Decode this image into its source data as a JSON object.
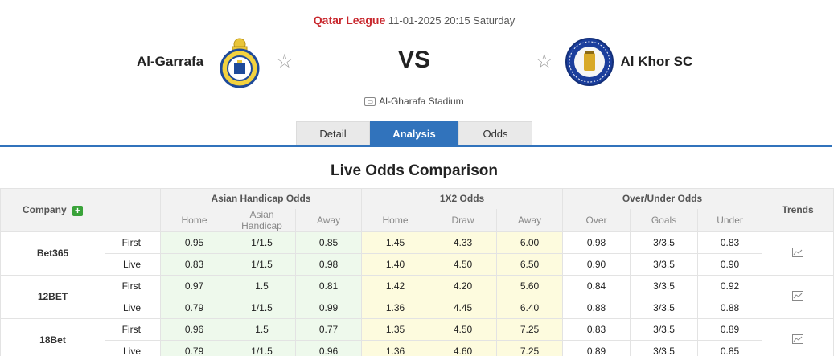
{
  "header": {
    "league": "Qatar League",
    "datetime": "11-01-2025 20:15 Saturday",
    "home_team": "Al-Garrafa",
    "away_team": "Al Khor SC",
    "vs": "VS",
    "stadium": "Al-Gharafa Stadium",
    "home_logo_icon": "al-garrafa-crest-icon",
    "away_logo_icon": "al-khor-crest-icon"
  },
  "tabs": [
    {
      "label": "Detail",
      "active": false
    },
    {
      "label": "Analysis",
      "active": true
    },
    {
      "label": "Odds",
      "active": false
    }
  ],
  "section_title": "Live Odds Comparison",
  "table": {
    "company_header": "Company",
    "group_headers": [
      "Asian Handicap Odds",
      "1X2 Odds",
      "Over/Under Odds"
    ],
    "trends_header": "Trends",
    "sub_headers": [
      "Home",
      "Asian Handicap",
      "Away",
      "Home",
      "Draw",
      "Away",
      "Over",
      "Goals",
      "Under"
    ],
    "rows": [
      {
        "company": "Bet365",
        "first": [
          "0.95",
          "1/1.5",
          "0.85",
          "1.45",
          "4.33",
          "6.00",
          "0.98",
          "3/3.5",
          "0.83"
        ],
        "live": [
          "0.83",
          "1/1.5",
          "0.98",
          "1.40",
          "4.50",
          "6.50",
          "0.90",
          "3/3.5",
          "0.90"
        ]
      },
      {
        "company": "12BET",
        "first": [
          "0.97",
          "1.5",
          "0.81",
          "1.42",
          "4.20",
          "5.60",
          "0.84",
          "3/3.5",
          "0.92"
        ],
        "live": [
          "0.79",
          "1/1.5",
          "0.99",
          "1.36",
          "4.45",
          "6.40",
          "0.88",
          "3/3.5",
          "0.88"
        ]
      },
      {
        "company": "18Bet",
        "first": [
          "0.96",
          "1.5",
          "0.77",
          "1.35",
          "4.50",
          "7.25",
          "0.83",
          "3/3.5",
          "0.89"
        ],
        "live": [
          "0.79",
          "1/1.5",
          "0.96",
          "1.36",
          "4.60",
          "7.25",
          "0.89",
          "3/3.5",
          "0.85"
        ]
      }
    ],
    "first_label": "First",
    "live_label": "Live"
  },
  "colors": {
    "accent_blue": "#3173bc",
    "league_red": "#c8262c",
    "ah_bg": "#eef9ec",
    "x12_bg": "#fdfbde",
    "add_green": "#3aa33a"
  }
}
